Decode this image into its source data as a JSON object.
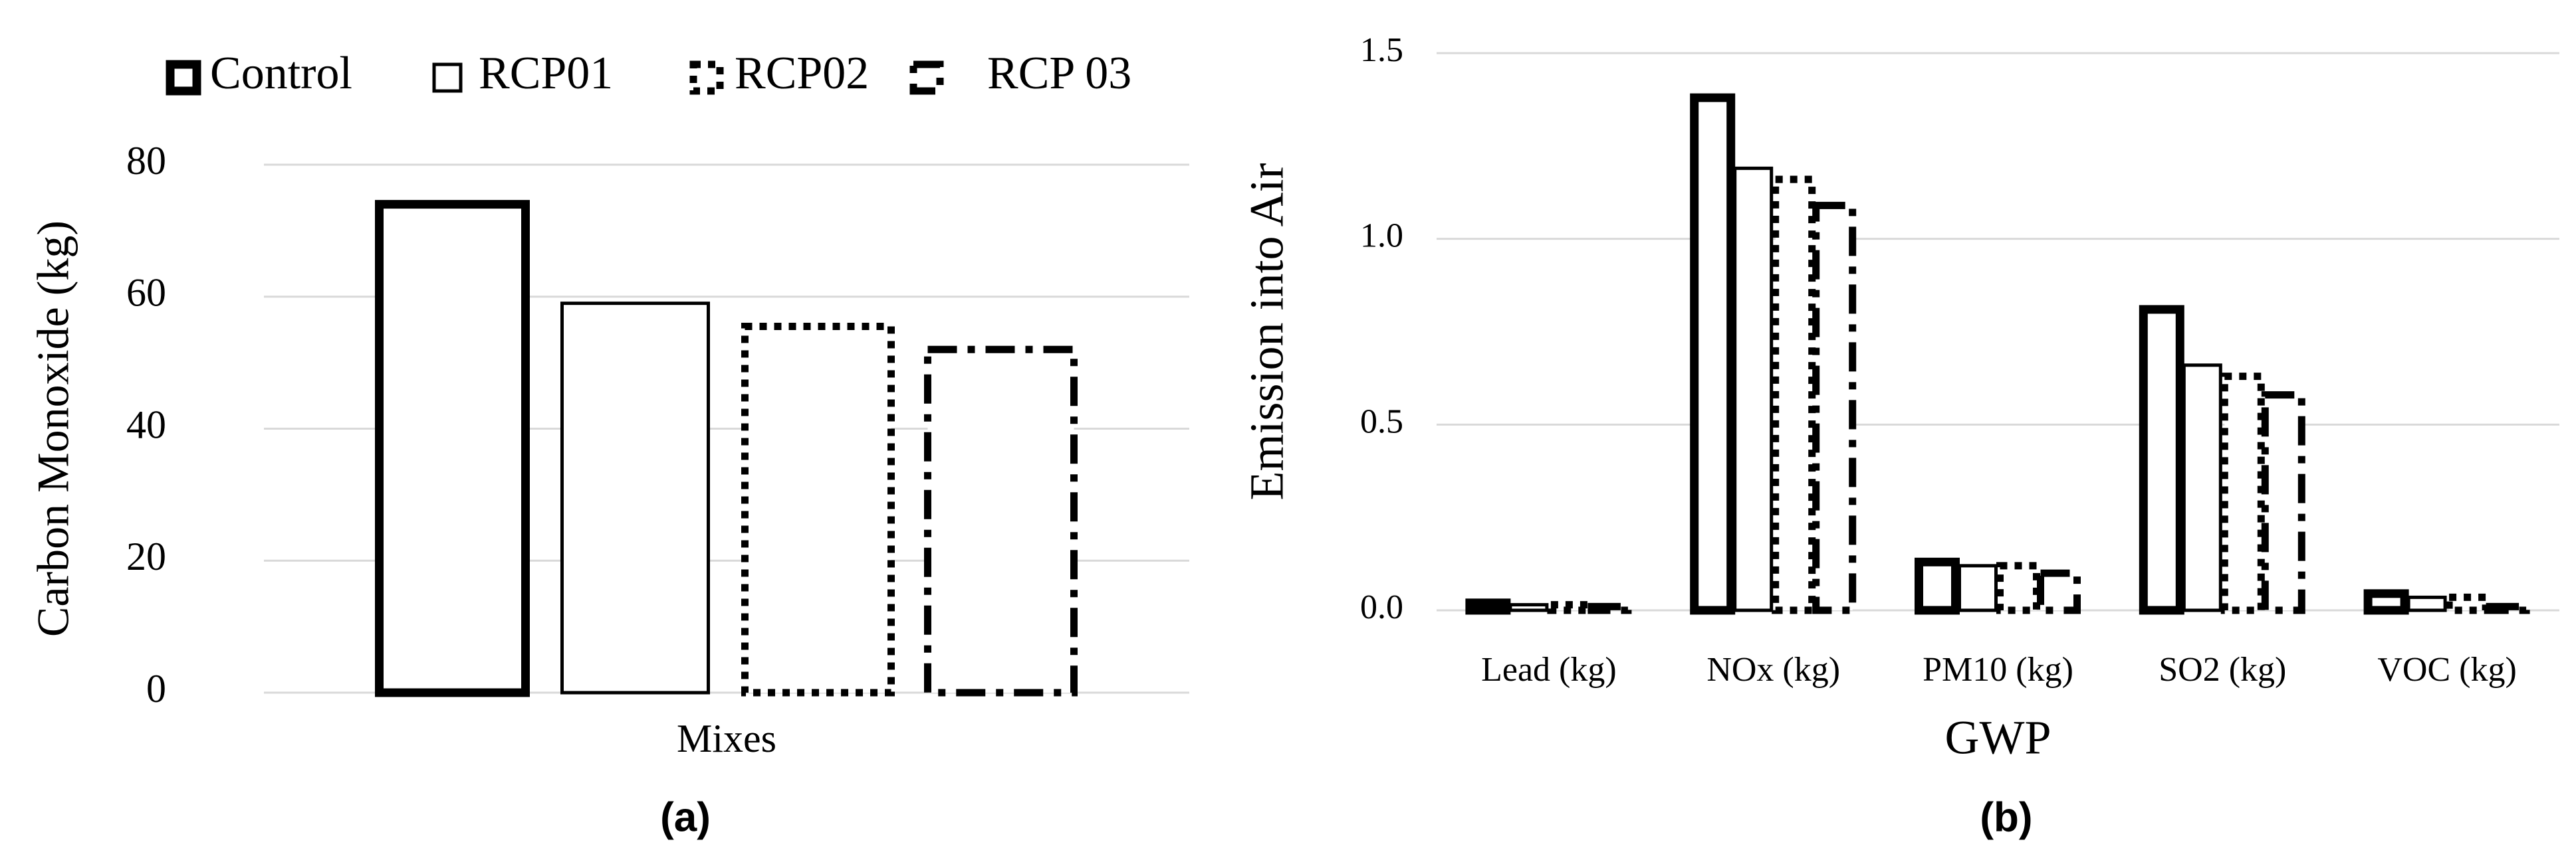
{
  "chart_data": [
    {
      "type": "bar",
      "caption": "(a)",
      "y_label": "Carbon Monoxide (kg)",
      "categories": [
        "Mixes"
      ],
      "series": [
        {
          "name": "Control",
          "color": "#000000",
          "style": "thick",
          "values": [
            74
          ]
        },
        {
          "name": "RCP01",
          "color": "#000000",
          "style": "solid",
          "values": [
            59
          ]
        },
        {
          "name": "RCP02",
          "color": "#000000",
          "style": "dotted",
          "values": [
            55.5
          ]
        },
        {
          "name": "RCP 03",
          "color": "#000000",
          "style": "dash-dot",
          "values": [
            52
          ]
        }
      ],
      "ylim": [
        0,
        80
      ],
      "yticks": [
        0,
        20,
        40,
        60,
        80
      ],
      "grid": true,
      "legend": "top"
    },
    {
      "type": "bar",
      "caption": "(b)",
      "x_label": "GWP",
      "y_label": "Emission into Air",
      "categories": [
        "Lead (kg)",
        "NOx (kg)",
        "PM10 (kg)",
        "SO2 (kg)",
        "VOC (kg)"
      ],
      "series": [
        {
          "color": "#000000",
          "style": "thick",
          "values": [
            0.02,
            1.38,
            0.13,
            0.81,
            0.045
          ]
        },
        {
          "color": "#000000",
          "style": "solid",
          "values": [
            0.015,
            1.19,
            0.12,
            0.66,
            0.035
          ]
        },
        {
          "color": "#000000",
          "style": "dotted",
          "values": [
            0.015,
            1.16,
            0.12,
            0.63,
            0.035
          ]
        },
        {
          "color": "#000000",
          "style": "dash-dot",
          "values": [
            0.01,
            1.09,
            0.1,
            0.58,
            0.01
          ]
        }
      ],
      "ylim": [
        0,
        1.5
      ],
      "yticks": [
        {
          "value": 0,
          "label": "0.0"
        },
        0.5,
        {
          "value": 1,
          "label": "1.0"
        },
        1.5
      ],
      "grid": true
    }
  ]
}
